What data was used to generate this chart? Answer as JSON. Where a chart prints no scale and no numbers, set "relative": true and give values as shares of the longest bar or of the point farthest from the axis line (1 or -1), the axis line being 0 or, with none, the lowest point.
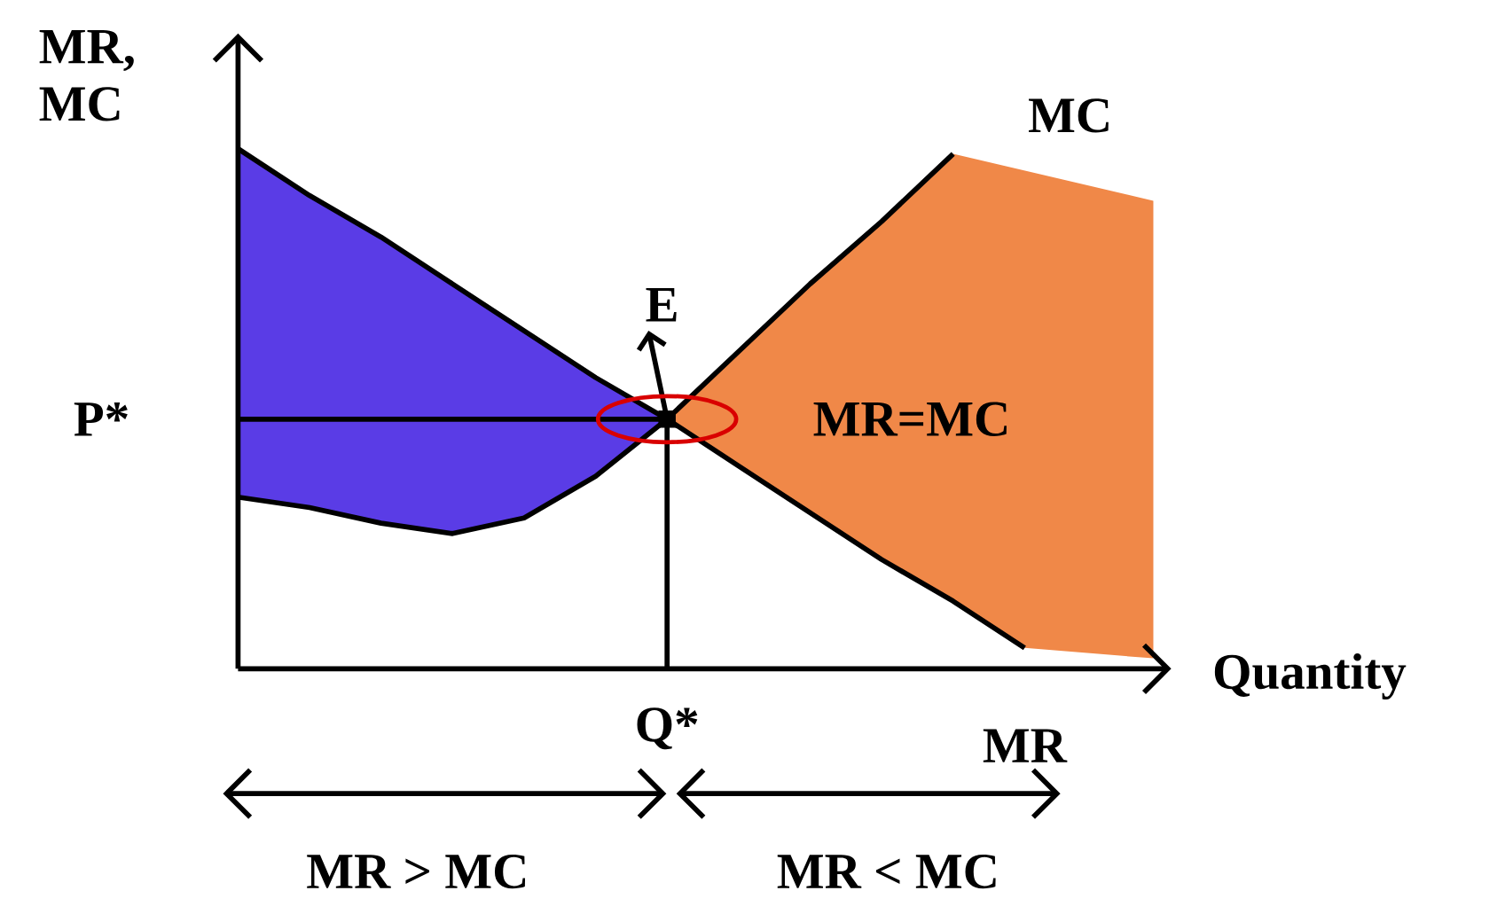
{
  "chart_data": {
    "type": "line",
    "relative": true,
    "xlabel": "Quantity",
    "ylabel": "MR, MC",
    "categories": [
      null,
      null,
      null,
      null,
      null,
      null,
      null,
      null,
      null,
      null,
      null,
      null,
      null,
      null
    ],
    "series": [
      {
        "name": "MR",
        "color": "#000000",
        "values": [
          1.0,
          0.91,
          0.83,
          0.74,
          0.65,
          0.56,
          0.48,
          0.39,
          0.3,
          0.21,
          0.13,
          0.04,
          null,
          null
        ]
      },
      {
        "name": "MC",
        "color": "#000000",
        "values": [
          0.33,
          0.31,
          0.28,
          0.26,
          0.29,
          0.37,
          0.48,
          0.61,
          0.74,
          0.86,
          0.99,
          null,
          null,
          null
        ]
      }
    ],
    "ref_lines": [
      {
        "axis": "y",
        "value": 0.48,
        "label": "P*"
      }
    ],
    "annotations": [
      "E",
      "MR=MC",
      "MR > MC",
      "MR < MC",
      "Q*"
    ]
  }
}
